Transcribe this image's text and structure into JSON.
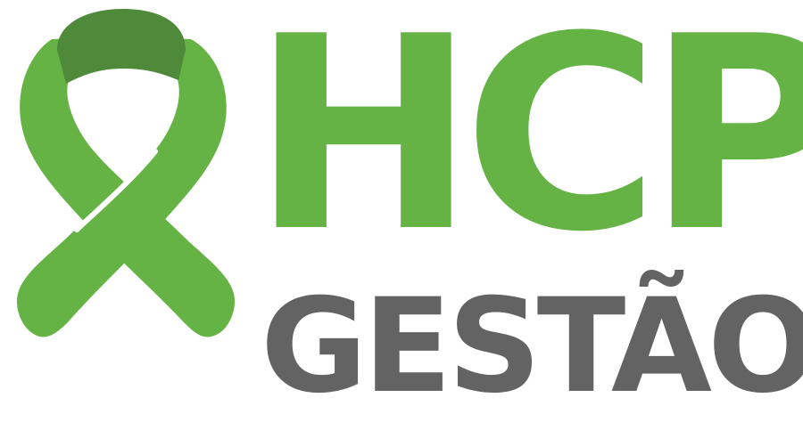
{
  "logo": {
    "main_text": "HCP",
    "sub_text": "GESTÃO",
    "ribbon_icon": "awareness-ribbon-icon"
  },
  "colors": {
    "primary_green": "#66b345",
    "dark_green": "#4f8a3b",
    "text_gray": "#636363",
    "background": "#ffffff"
  }
}
